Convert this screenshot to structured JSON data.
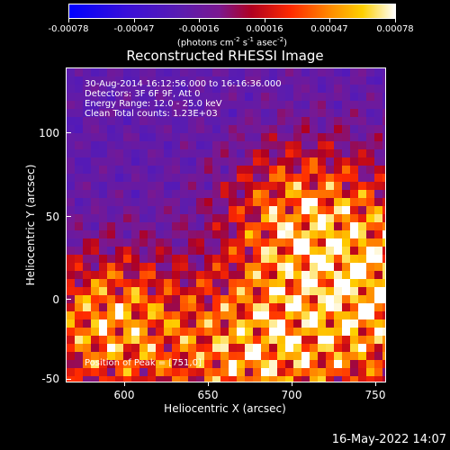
{
  "colorbar": {
    "ticks": [
      "-0.00078",
      "-0.00047",
      "-0.00016",
      "0.00016",
      "0.00047",
      "0.00078"
    ],
    "unit_main": "(photons cm",
    "unit_sup1": "-2",
    "unit_mid": " s",
    "unit_sup2": "-1",
    "unit_end": " asec",
    "unit_sup3": "-2",
    "unit_close": ")"
  },
  "info": {
    "line1": "30-Aug-2014 16:12:56.000 to 16:16:36.000",
    "line2": "Detectors: 3F 6F 9F, Att 0",
    "line3": "Energy Range: 12.0 - 25.0 keV",
    "line4": "Clean     Total counts: 1.23E+03",
    "peak": "Position of Peak = [751,0]"
  },
  "footer_date": "16-May-2022 14:07",
  "chart_data": {
    "type": "heatmap",
    "title": "Reconstructed RHESSI Image",
    "xlabel": "Heliocentric X (arcsec)",
    "ylabel": "Heliocentric Y (arcsec)",
    "xlim": [
      566,
      756
    ],
    "ylim": [
      -52,
      134
    ],
    "xticks": [
      600,
      650,
      700,
      750
    ],
    "yticks": [
      -50,
      0,
      50,
      100
    ],
    "colorbar_range": [
      -0.00078,
      0.00078
    ],
    "peak_position": [
      751,
      0
    ]
  }
}
